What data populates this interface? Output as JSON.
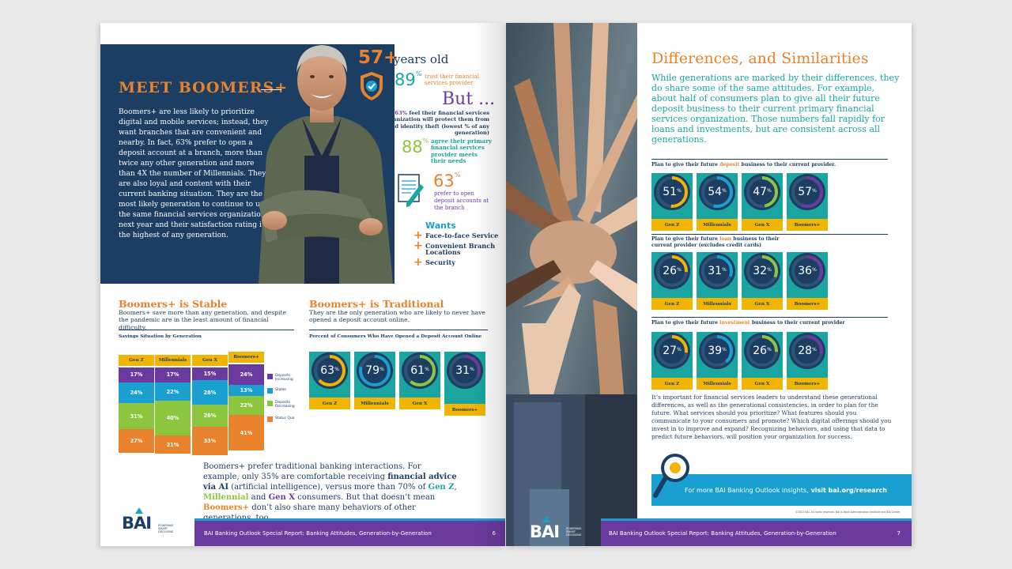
{
  "left_page": {
    "hero": {
      "title": "MEET BOOMERS+",
      "body": "Boomers+ are less likely to prioritize digital and mobile services; instead, they want branches that are convenient and nearby. In fact, 63% prefer to open a deposit account at a branch, more than twice any other generation and more than 4X the number of Millennials. They are also loyal and content with their current banking situation. They are the most likely generation to continue to use the same financial services organization next year and their satisfaction rating is the highest of any generation."
    },
    "stats": {
      "age_value": "57+",
      "age_label": "years old",
      "trust_value": "89",
      "trust_unit": "%",
      "trust_label": "trust their financial services provider",
      "but_label": "But ...",
      "but_note_pre": "Only ",
      "but_note_hl": "63%",
      "but_note_post": " feel their financial services organization will protect them from fraud and identity theft (lowest % of any generation)",
      "needs_value": "88",
      "needs_unit": "%",
      "needs_label": "agree their primary financial services provider meets their needs",
      "branch_value": "63",
      "branch_unit": "%",
      "branch_label": "prefer to open deposit accounts at the branch"
    },
    "wants": {
      "title": "Wants",
      "items": [
        "Face-to-face Service",
        "Convenient Branch Locations",
        "Security"
      ],
      "plus": "+"
    },
    "stable": {
      "title": "Boomers+ is Stable",
      "subtitle": "Boomers+ save more than any generation, and despite the pandemic are in the least amount of financial difficulty.",
      "caption": "Savings Situation by Generation"
    },
    "traditional": {
      "title": "Boomers+ is Traditional",
      "subtitle": "They are the only generation who are likely to never have opened a deposit account online.",
      "caption": "Percent of Consumers Who Have Opened a Deposit Account Online"
    },
    "bottom_text": {
      "p1": "Boomers+ prefer traditional banking interactions. For example, only 35% are comfortable receiving ",
      "b1": "financial advice via AI",
      "p2": " (artificial intelligence), versus more than 70% of ",
      "g1": "Gen Z",
      "sep1": ", ",
      "g2": "Millennial",
      "sep2": " and ",
      "g3": "Gen X",
      "p3": " consumers. But that doesn’t mean ",
      "g4": "Boomers+",
      "p4": " don’t also share many behaviors of other generations, too ..."
    },
    "footer": {
      "logo": "BAI",
      "tagline": "POWERING SMART DECISIONS",
      "report": "BAI Banking Outlook Special Report: Banking Attitudes, Generation-by-Generation",
      "page": "6"
    }
  },
  "right_page": {
    "title": "Differences, and Similarities",
    "intro": "While generations are marked by their differences, they do share some of the same attitudes. For example, about half of consumers plan to give all their future deposit business to their current primary financial services organization. Those numbers fall rapidly for loans and investments, but are consistent across all generations.",
    "sections": [
      {
        "pre": "Plan to give their future ",
        "hl": "deposit",
        "post": " business to their current provider."
      },
      {
        "pre": "Plan to give their future ",
        "hl": "loan",
        "post": " business to their current provider (excludes credit cards)"
      },
      {
        "pre": "Plan to give their future ",
        "hl": "investment",
        "post": " business to their current provider"
      }
    ],
    "body": "It’s important for financial services leaders to understand these generational differences, as well as the generational consistencies, in order to plan for the future. What services should you prioritize? What features should you communicate to your consumers and promote? Which digital offerings should you invest in to improve and expand? Recognizing behaviors, and using that data to predict future behaviors, will position your organization for success.",
    "cta_text": "For more BAI Banking Outlook insights,",
    "cta_link": "visit bai.org/research",
    "copyright": "©2022 BAI. All rights reserved. BAI is Bank Administration Institute and BAI Center",
    "footer": {
      "logo": "BAI",
      "tagline": "POWERING SMART DECISIONS",
      "report": "BAI Banking Outlook Special Report: Banking Attitudes, Generation-by-Generation",
      "page": "7"
    }
  },
  "colors": {
    "navy": "#1c3e62",
    "orange": "#e8822c",
    "teal": "#1aa5a0",
    "yellow": "#f1b400",
    "purple": "#6b3a9e",
    "green": "#8cc63f",
    "blue": "#1aa0d0"
  },
  "chart_data": [
    {
      "type": "bar",
      "stacked": true,
      "categories": [
        "Gen Z",
        "Millennials",
        "Gen X",
        "Boomers+"
      ],
      "series": [
        {
          "name": "Deposits Increasing",
          "color": "#6b3a9e",
          "values": [
            17,
            17,
            15,
            24
          ]
        },
        {
          "name": "Stable",
          "color": "#1aa0d0",
          "values": [
            24,
            22,
            28,
            13
          ]
        },
        {
          "name": "Deposits Decreasing",
          "color": "#8cc63f",
          "values": [
            31,
            40,
            26,
            22
          ]
        },
        {
          "name": "Status Quo",
          "color": "#e8822c",
          "values": [
            27,
            21,
            33,
            41
          ]
        }
      ],
      "labels": {
        "Gen Z": [
          "17%",
          "24%",
          "31%",
          "27%"
        ],
        "Millennials": [
          "17%",
          "22%",
          "40%",
          "21%"
        ],
        "Gen X": [
          "15%",
          "28%",
          "26%",
          "33%"
        ],
        "Boomers+": [
          "24%",
          "13%",
          "22%",
          "41%"
        ]
      }
    },
    {
      "type": "gauge",
      "categories": [
        "Gen Z",
        "Millennials",
        "Gen X",
        "Boomers+"
      ],
      "values": [
        63,
        79,
        61,
        31
      ],
      "unit": "%"
    },
    {
      "type": "gauge",
      "categories": [
        "Gen Z",
        "Millennials",
        "Gen X",
        "Boomers+"
      ],
      "values": [
        51,
        54,
        47,
        57
      ],
      "unit": "%"
    },
    {
      "type": "gauge",
      "categories": [
        "Gen Z",
        "Millennials",
        "Gen X",
        "Boomers+"
      ],
      "values": [
        26,
        31,
        32,
        36
      ],
      "unit": "%"
    },
    {
      "type": "gauge",
      "categories": [
        "Gen Z",
        "Millennials",
        "Gen X",
        "Boomers+"
      ],
      "values": [
        27,
        39,
        26,
        28
      ],
      "unit": "%"
    }
  ]
}
